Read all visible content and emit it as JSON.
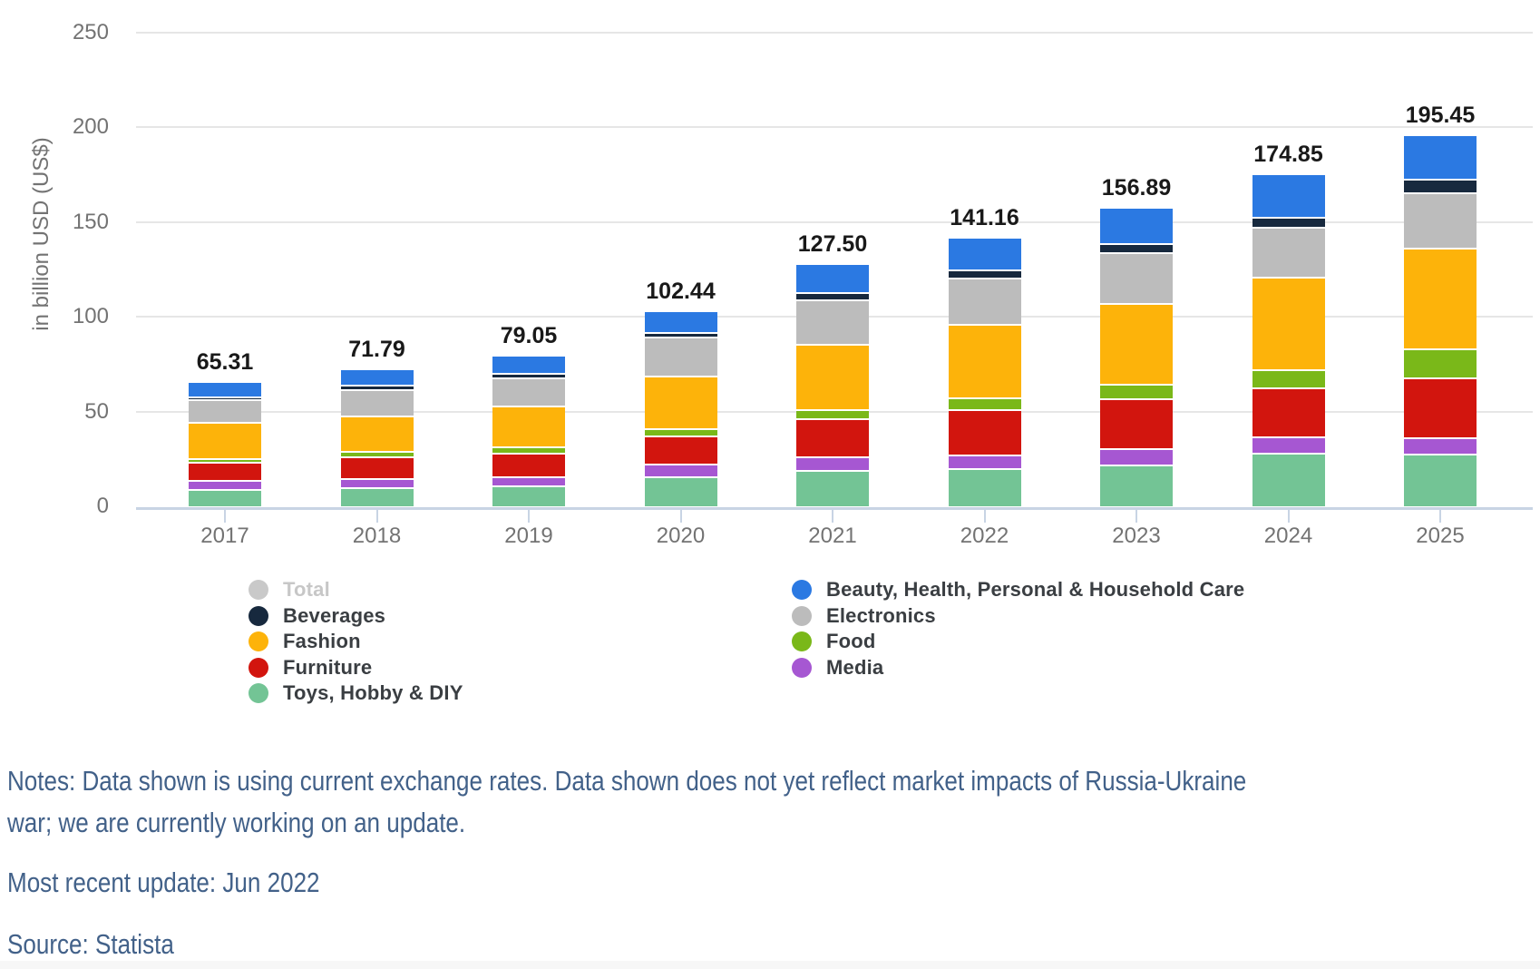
{
  "chart_data": {
    "type": "bar",
    "stacked": true,
    "title": "",
    "xlabel": "",
    "ylabel": "in billion USD (US$)",
    "ylim": [
      0,
      250
    ],
    "yticks": [
      0,
      50,
      100,
      150,
      200,
      250
    ],
    "grid": true,
    "legend_position": "bottom",
    "categories": [
      "2017",
      "2018",
      "2019",
      "2020",
      "2021",
      "2022",
      "2023",
      "2024",
      "2025"
    ],
    "totals": [
      "65.31",
      "71.79",
      "79.05",
      "102.44",
      "127.50",
      "141.16",
      "156.89",
      "174.85",
      "195.45"
    ],
    "series": [
      {
        "key": "toys-hobby-diy",
        "name": "Toys, Hobby & DIY",
        "color": "#73c495",
        "values": [
          9.2,
          10.0,
          10.95,
          16.04,
          19.4,
          20.2,
          22.1,
          28.2,
          27.65
        ]
      },
      {
        "key": "media",
        "name": "Media",
        "color": "#a657d2",
        "values": [
          4.1,
          4.05,
          4.2,
          6.0,
          6.6,
          6.7,
          7.8,
          7.9,
          8.0
        ]
      },
      {
        "key": "furniture",
        "name": "Furniture",
        "color": "#d2150e",
        "values": [
          9.9,
          11.95,
          12.8,
          14.8,
          19.8,
          24.1,
          26.6,
          25.9,
          31.6
        ]
      },
      {
        "key": "food",
        "name": "Food",
        "color": "#7ab819",
        "values": [
          0.7,
          2.0,
          2.6,
          3.3,
          4.3,
          5.5,
          6.8,
          9.3,
          15.3
        ]
      },
      {
        "key": "fashion",
        "name": "Fashion",
        "color": "#fdb30a",
        "values": [
          20.21,
          19.8,
          22.5,
          28.6,
          35.4,
          39.5,
          43.9,
          49.8,
          54.0
        ]
      },
      {
        "key": "electronics",
        "name": "Electronics",
        "color": "#bcbcbc",
        "values": [
          12.6,
          13.9,
          14.8,
          20.7,
          23.8,
          24.8,
          26.7,
          26.2,
          28.9
        ]
      },
      {
        "key": "beverages",
        "name": "Beverages",
        "color": "#17293e",
        "values": [
          0.5,
          1.5,
          1.9,
          2.0,
          2.9,
          3.5,
          4.0,
          4.7,
          6.6
        ]
      },
      {
        "key": "beauty-health-personal-household-care",
        "name": "Beauty, Health, Personal & Household Care",
        "color": "#2b79e2",
        "values": [
          8.1,
          8.59,
          9.3,
          11.0,
          15.3,
          16.86,
          18.99,
          22.85,
          23.4
        ]
      }
    ],
    "legend": {
      "left_column": [
        {
          "key": "total",
          "label": "Total",
          "color": "#c9c9c9",
          "muted": true
        },
        {
          "key": "beverages",
          "label": "Beverages",
          "color": "#17293e",
          "muted": false
        },
        {
          "key": "fashion",
          "label": "Fashion",
          "color": "#fdb30a",
          "muted": false
        },
        {
          "key": "furniture",
          "label": "Furniture",
          "color": "#d2150e",
          "muted": false
        },
        {
          "key": "toys-hobby-diy",
          "label": "Toys, Hobby & DIY",
          "color": "#73c495",
          "muted": false
        }
      ],
      "right_column": [
        {
          "key": "beauty-health-personal-household-care",
          "label": "Beauty, Health, Personal & Household Care",
          "color": "#2b79e2",
          "muted": false
        },
        {
          "key": "electronics",
          "label": "Electronics",
          "color": "#bcbcbc",
          "muted": false
        },
        {
          "key": "food",
          "label": "Food",
          "color": "#7ab819",
          "muted": false
        },
        {
          "key": "media",
          "label": "Media",
          "color": "#a657d2",
          "muted": false
        }
      ]
    }
  },
  "footer": {
    "notes_line1": "Notes: Data shown is using current exchange rates. Data shown does not yet reflect market impacts of Russia-Ukraine",
    "notes_line2": "war; we are currently working on an update.",
    "updated": "Most recent update: Jun 2022",
    "source": "Source: Statista"
  },
  "colors": {
    "gridline": "#e6e6e6",
    "axis": "#c8d4e4",
    "tick_label": "#737373",
    "value_label": "#191919",
    "legend_text": "#3a3e42",
    "legend_muted_text": "#c7c7c7",
    "notes_text": "#426189",
    "separator": "#ffffff"
  }
}
